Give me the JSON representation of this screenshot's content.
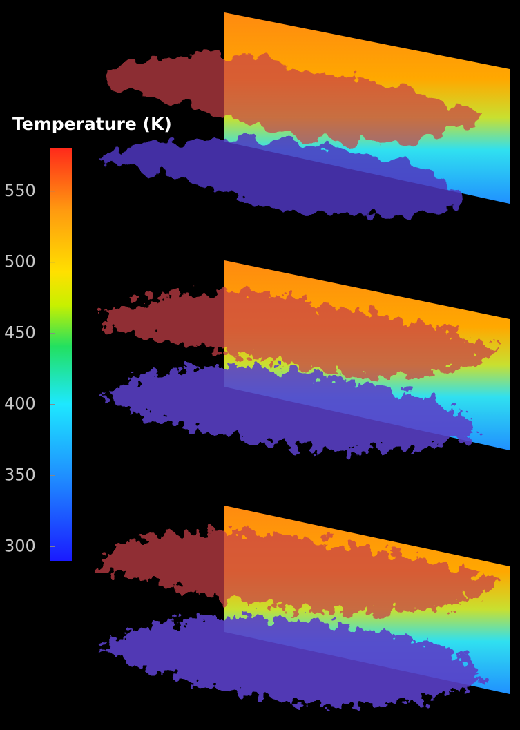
{
  "colorbar": {
    "title": "Temperature (K)",
    "lim": [
      290,
      580
    ],
    "ticks": [
      300,
      350,
      400,
      450,
      500,
      550
    ]
  }
}
